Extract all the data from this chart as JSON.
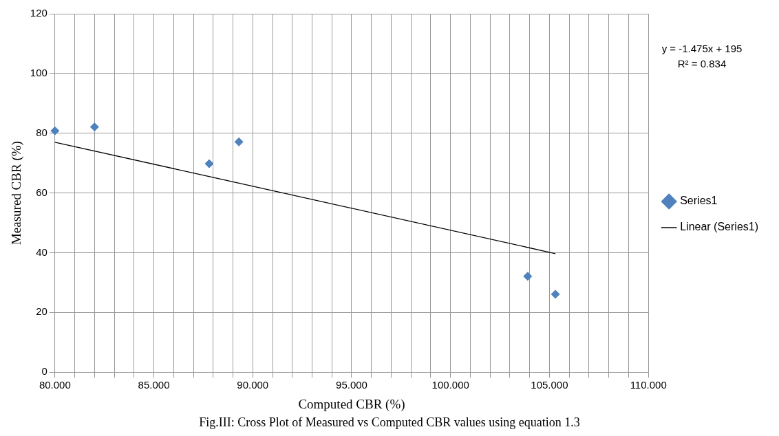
{
  "chart_data": {
    "type": "scatter",
    "xlabel": "Computed CBR (%)",
    "ylabel": "Measured CBR (%)",
    "series": [
      {
        "name": "Series1",
        "color": "#4f81bd",
        "x": [
          80.0,
          82.0,
          87.8,
          89.3,
          103.9,
          105.3
        ],
        "values": [
          80.8,
          82.1,
          69.8,
          77.1,
          32.1,
          26.1
        ],
        "marker": "diamond"
      },
      {
        "name": "Linear (Series1)",
        "type": "line",
        "color": "#000000",
        "x": [
          80.0,
          105.3
        ],
        "values": [
          77.0,
          39.7
        ],
        "marker": "none",
        "line_style": "solid"
      }
    ],
    "xlim": [
      80,
      110
    ],
    "xticks": [
      {
        "value": 80,
        "label": "80.000"
      },
      {
        "value": 81,
        "label": null
      },
      {
        "value": 82,
        "label": null
      },
      {
        "value": 83,
        "label": null
      },
      {
        "value": 84,
        "label": null
      },
      {
        "value": 85,
        "label": "85.000"
      },
      {
        "value": 86,
        "label": null
      },
      {
        "value": 87,
        "label": null
      },
      {
        "value": 88,
        "label": null
      },
      {
        "value": 89,
        "label": null
      },
      {
        "value": 90,
        "label": "90.000"
      },
      {
        "value": 91,
        "label": null
      },
      {
        "value": 92,
        "label": null
      },
      {
        "value": 93,
        "label": null
      },
      {
        "value": 94,
        "label": null
      },
      {
        "value": 95,
        "label": "95.000"
      },
      {
        "value": 96,
        "label": null
      },
      {
        "value": 97,
        "label": null
      },
      {
        "value": 98,
        "label": null
      },
      {
        "value": 99,
        "label": null
      },
      {
        "value": 100,
        "label": "100.000"
      },
      {
        "value": 101,
        "label": null
      },
      {
        "value": 102,
        "label": null
      },
      {
        "value": 103,
        "label": null
      },
      {
        "value": 104,
        "label": null
      },
      {
        "value": 105,
        "label": "105.000"
      },
      {
        "value": 106,
        "label": null
      },
      {
        "value": 107,
        "label": null
      },
      {
        "value": 108,
        "label": null
      },
      {
        "value": 109,
        "label": null
      },
      {
        "value": 110,
        "label": "110.000"
      }
    ],
    "ylim": [
      0,
      120
    ],
    "yticks": [
      0,
      20,
      40,
      60,
      80,
      100,
      120
    ],
    "grid": true,
    "legend": "right",
    "annotations": [
      "y = -1.475x + 195\nR² = 0.834",
      "Fig.III: Cross Plot of Measured vs Computed CBR values using equation 1.3"
    ]
  }
}
